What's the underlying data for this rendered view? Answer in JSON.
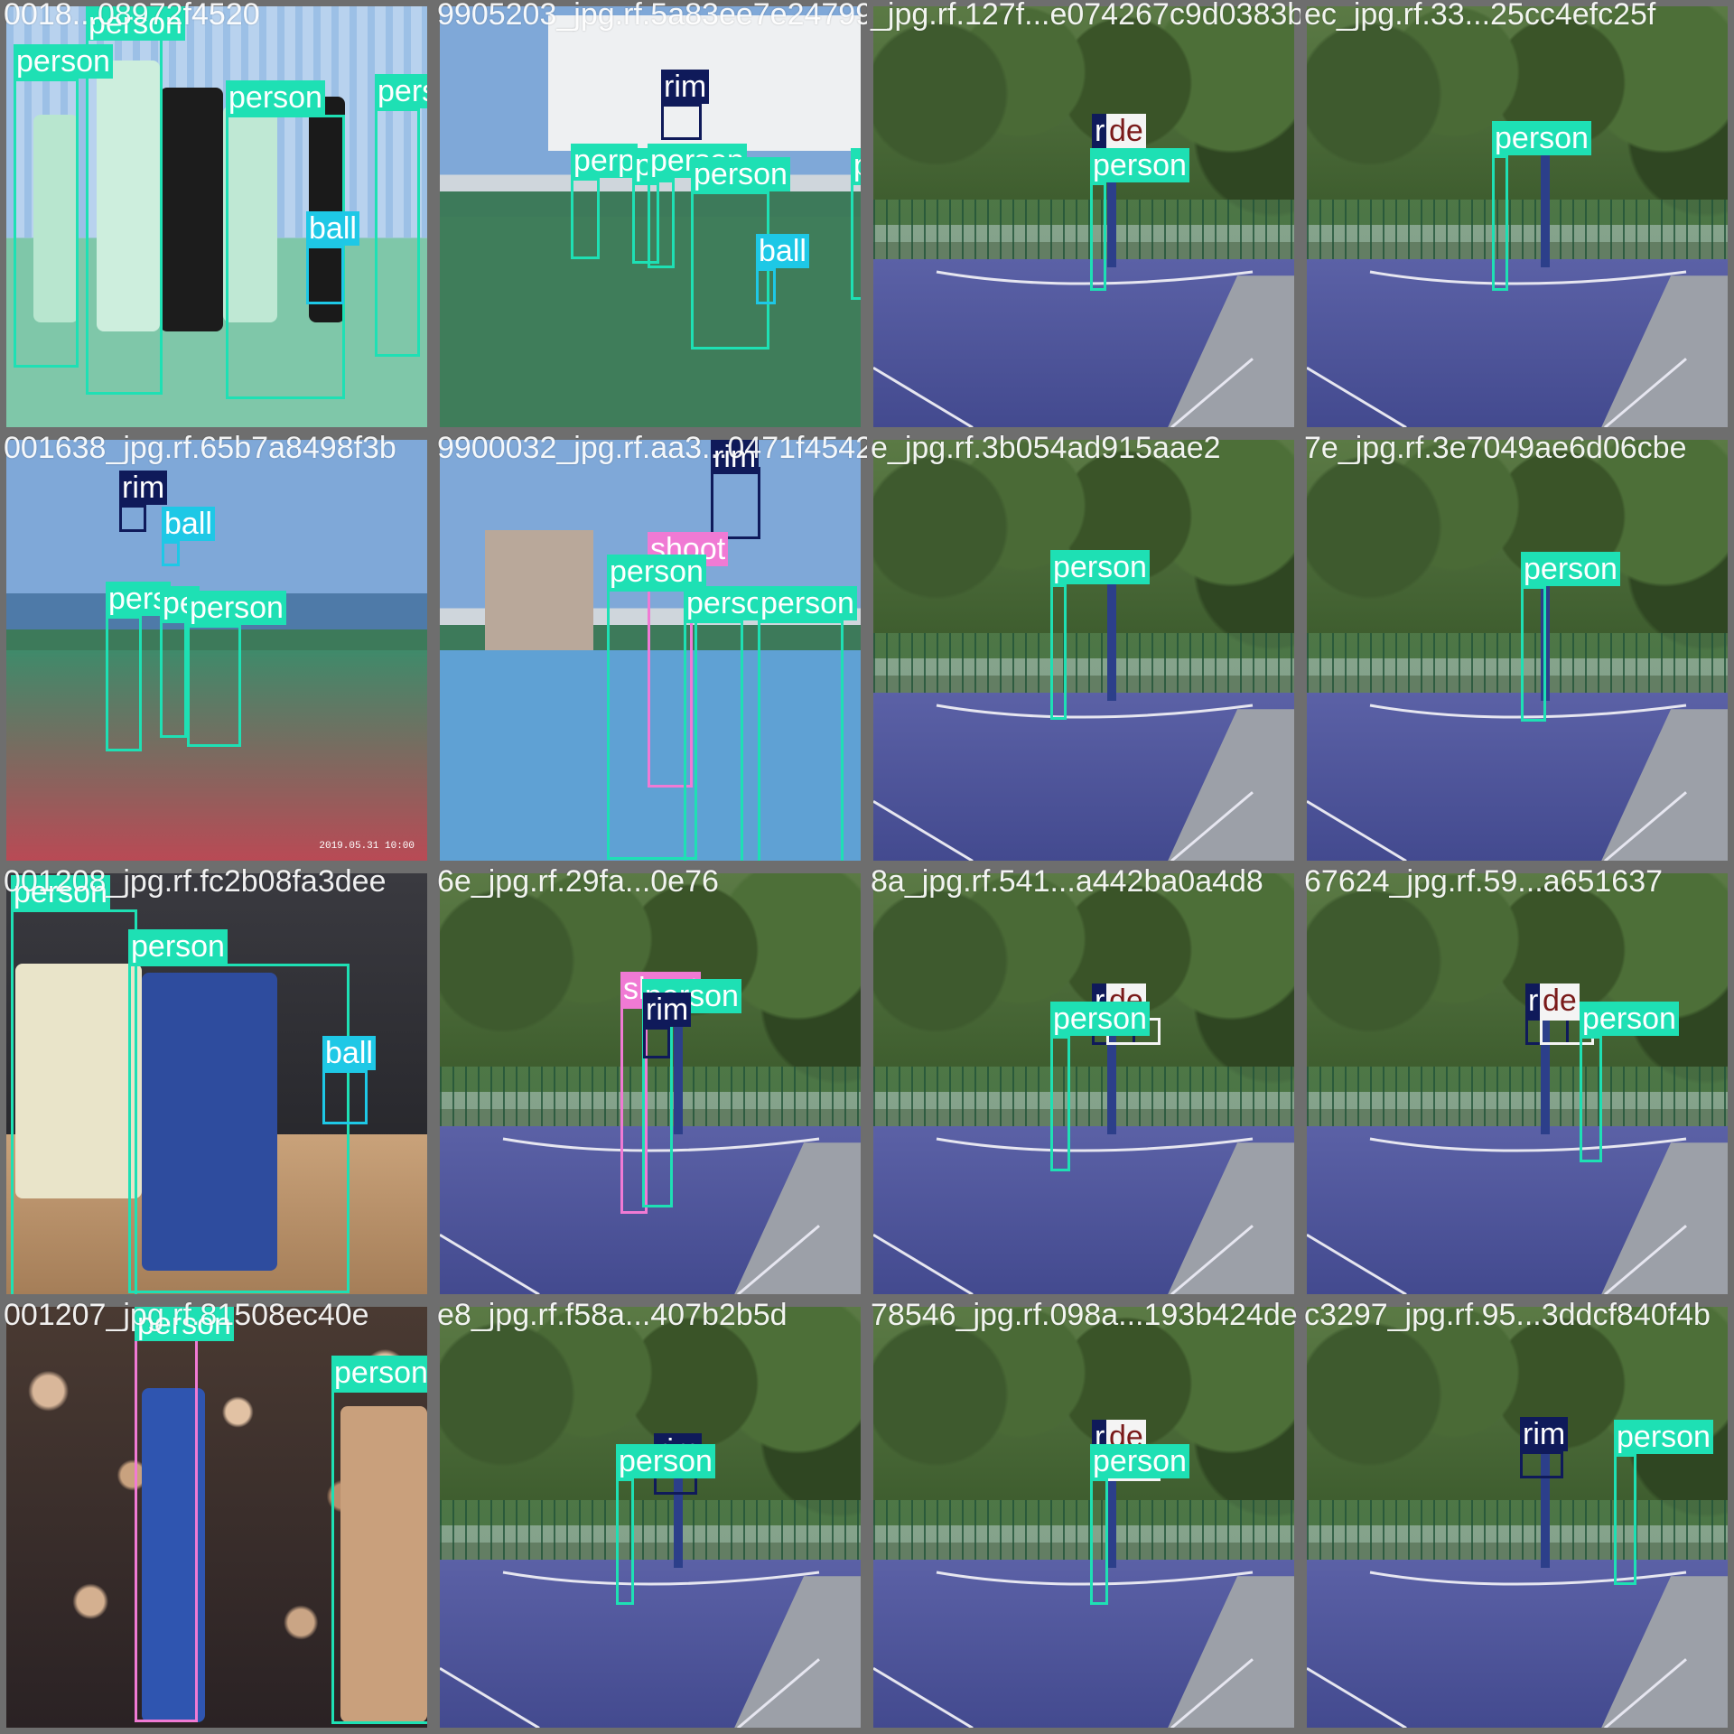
{
  "colors": {
    "person": "#1ee0b4",
    "ball": "#1ec8e6",
    "rim": "#0f1a5a",
    "shoot": "#f07ad4",
    "made": "#f4f4f4",
    "made_text": "#7a1a1a"
  },
  "tiles": [
    {
      "filename": "0018...08972f4520",
      "scene": "gym",
      "labels": [
        {
          "cls": "person",
          "text": "person"
        },
        {
          "cls": "person",
          "text": "person"
        },
        {
          "cls": "person",
          "text": "person"
        },
        {
          "cls": "person",
          "text": "person"
        },
        {
          "cls": "person",
          "text": "person"
        },
        {
          "cls": "ball",
          "text": "ball"
        }
      ]
    },
    {
      "filename": "9905203_jpg.rf.5a83ee7e247990",
      "scene": "campus",
      "labels": [
        {
          "cls": "rim",
          "text": "rim"
        },
        {
          "cls": "person",
          "text": "perp"
        },
        {
          "cls": "person",
          "text": "pe"
        },
        {
          "cls": "person",
          "text": "person"
        },
        {
          "cls": "person",
          "text": "person"
        },
        {
          "cls": "person",
          "text": "person"
        },
        {
          "cls": "ball",
          "text": "ball"
        }
      ]
    },
    {
      "filename": "_jpg.rf.127f...e074267c9d0383b",
      "scene": "park",
      "labels": [
        {
          "cls": "rim",
          "text": "rim"
        },
        {
          "cls": "made",
          "text": "de"
        },
        {
          "cls": "person",
          "text": "person"
        }
      ]
    },
    {
      "filename": "ec_jpg.rf.33...25cc4efc25f",
      "scene": "park",
      "labels": [
        {
          "cls": "person",
          "text": "person"
        }
      ]
    },
    {
      "filename": "001638_jpg.rf.65b7a8498f3b",
      "scene": "outdoor",
      "labels": [
        {
          "cls": "rim",
          "text": "rim"
        },
        {
          "cls": "ball",
          "text": "ball"
        },
        {
          "cls": "person",
          "text": "pers"
        },
        {
          "cls": "person",
          "text": "pe"
        },
        {
          "cls": "person",
          "text": "person"
        }
      ],
      "stamp": "2019.05.31 10:00"
    },
    {
      "filename": "9900032_jpg.rf.aa3...0471f4542",
      "scene": "highrise",
      "labels": [
        {
          "cls": "rim",
          "text": "rim"
        },
        {
          "cls": "shoot",
          "text": "shoot"
        },
        {
          "cls": "person",
          "text": "person"
        },
        {
          "cls": "person",
          "text": "person"
        },
        {
          "cls": "person",
          "text": "person"
        },
        {
          "cls": "person",
          "text": "person"
        }
      ]
    },
    {
      "filename": "e_jpg.rf.3b054ad915aae2",
      "scene": "park",
      "labels": [
        {
          "cls": "person",
          "text": "person"
        }
      ]
    },
    {
      "filename": "7e_jpg.rf.3e7049ae6d06cbe",
      "scene": "park",
      "labels": [
        {
          "cls": "person",
          "text": "person"
        }
      ]
    },
    {
      "filename": "001208_jpg.rf.fc2b08fa3dee",
      "scene": "arena",
      "labels": [
        {
          "cls": "person",
          "text": "person"
        },
        {
          "cls": "person",
          "text": "person"
        },
        {
          "cls": "ball",
          "text": "ball"
        }
      ]
    },
    {
      "filename": "6e_jpg.rf.29fa...0e76",
      "scene": "park",
      "labels": [
        {
          "cls": "shoot",
          "text": "shoot"
        },
        {
          "cls": "person",
          "text": "person"
        },
        {
          "cls": "rim",
          "text": "rim"
        }
      ]
    },
    {
      "filename": "8a_jpg.rf.541...a442ba0a4d8",
      "scene": "park",
      "labels": [
        {
          "cls": "rim",
          "text": "rim"
        },
        {
          "cls": "made",
          "text": "de"
        },
        {
          "cls": "person",
          "text": "person"
        }
      ]
    },
    {
      "filename": "67624_jpg.rf.59...a651637",
      "scene": "park",
      "labels": [
        {
          "cls": "rim",
          "text": "rim"
        },
        {
          "cls": "made",
          "text": "de"
        },
        {
          "cls": "person",
          "text": "person"
        }
      ]
    },
    {
      "filename": "001207_jpg.rf.81508ec40e",
      "scene": "arena2",
      "labels": [
        {
          "cls": "shoot",
          "text": "shoot"
        },
        {
          "cls": "person",
          "text": "person"
        },
        {
          "cls": "person",
          "text": "person"
        }
      ]
    },
    {
      "filename": "e8_jpg.rf.f58a...407b2b5d",
      "scene": "park",
      "labels": [
        {
          "cls": "rim",
          "text": "rim"
        },
        {
          "cls": "person",
          "text": "person"
        }
      ]
    },
    {
      "filename": "78546_jpg.rf.098a...193b424de",
      "scene": "park",
      "labels": [
        {
          "cls": "rim",
          "text": "rim"
        },
        {
          "cls": "made",
          "text": "de"
        },
        {
          "cls": "person",
          "text": "person"
        }
      ]
    },
    {
      "filename": "c3297_jpg.rf.95...3ddcf840f4b",
      "scene": "park",
      "labels": [
        {
          "cls": "rim",
          "text": "rim"
        },
        {
          "cls": "person",
          "text": "person"
        }
      ]
    }
  ]
}
